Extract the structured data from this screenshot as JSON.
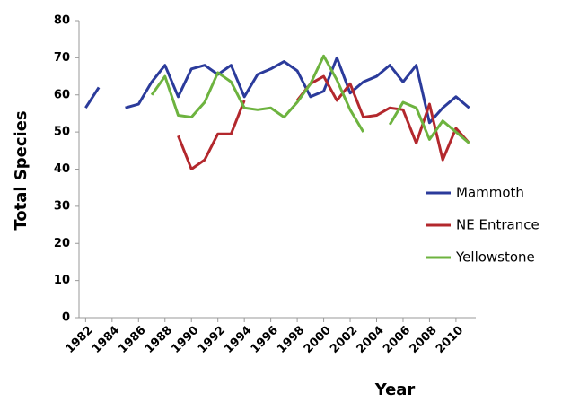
{
  "chart_data": {
    "type": "line",
    "x_label": "Year",
    "y_label": "Total Species",
    "x": [
      1982,
      1983,
      1984,
      1985,
      1986,
      1987,
      1988,
      1989,
      1990,
      1991,
      1992,
      1993,
      1994,
      1995,
      1996,
      1997,
      1998,
      1999,
      2000,
      2001,
      2002,
      2003,
      2004,
      2005,
      2006,
      2007,
      2008,
      2009,
      2010,
      2011
    ],
    "series": [
      {
        "name": "Mammoth",
        "color": "#2b3b9b",
        "values": [
          56.5,
          62,
          null,
          56.5,
          57.5,
          63.5,
          68,
          59.5,
          67,
          68,
          65.5,
          68,
          59.5,
          65.5,
          67,
          69,
          66.5,
          59.5,
          61,
          70,
          60.5,
          63.5,
          65,
          68,
          63.5,
          68,
          52.5,
          56.5,
          59.5,
          56.5
        ]
      },
      {
        "name": "NE Entrance",
        "color": "#b3282d",
        "values": [
          null,
          null,
          null,
          null,
          null,
          null,
          null,
          49,
          40,
          42.5,
          49.5,
          49.5,
          58.5,
          null,
          null,
          null,
          58.5,
          63,
          65,
          58.5,
          63,
          54,
          54.5,
          56.5,
          56,
          47,
          57.5,
          42.5,
          51,
          47
        ]
      },
      {
        "name": "Yellowstone",
        "color": "#6db33f",
        "values": [
          null,
          null,
          null,
          null,
          null,
          60,
          65,
          54.5,
          54,
          58,
          66,
          63.5,
          56.5,
          56,
          56.5,
          54,
          58,
          63,
          70.5,
          64,
          56,
          50,
          null,
          52,
          58,
          56.5,
          48,
          53,
          50,
          47
        ]
      }
    ],
    "xlim": [
      1981.5,
      2011.5
    ],
    "xticks": [
      1982,
      1984,
      1986,
      1988,
      1990,
      1992,
      1994,
      1996,
      1998,
      2000,
      2002,
      2004,
      2006,
      2008,
      2010
    ],
    "ylim": [
      0,
      80
    ],
    "yticks": [
      0,
      10,
      20,
      30,
      40,
      50,
      60,
      70,
      80
    ],
    "legend": "right"
  }
}
